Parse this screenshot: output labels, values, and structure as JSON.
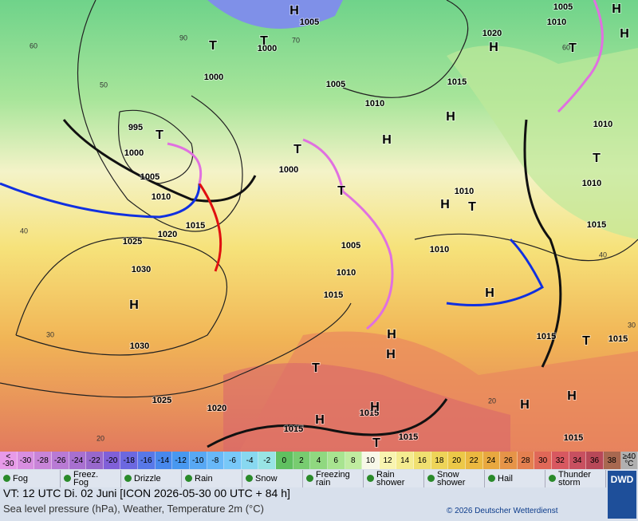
{
  "map": {
    "labels": [
      "1005",
      "1010",
      "1005",
      "1020",
      "1000",
      "1000",
      "1005",
      "1015",
      "1010",
      "995",
      "1000",
      "1000",
      "1005",
      "1010",
      "1015",
      "1020",
      "1025",
      "1030",
      "1010",
      "1010",
      "1010",
      "1015",
      "1005",
      "1010",
      "1010",
      "1015",
      "1015",
      "1015",
      "1030",
      "1025",
      "1020",
      "1015",
      "1015",
      "1015",
      "1015",
      "H",
      "H",
      "T",
      "T",
      "H",
      "H",
      "T",
      "T",
      "T",
      "H",
      "H",
      "T",
      "T",
      "H",
      "T",
      "H",
      "H",
      "H",
      "T",
      "T",
      "H",
      "H",
      "H",
      "H",
      "H",
      "T",
      "60",
      "50",
      "40",
      "30",
      "20",
      "70",
      "60",
      "40",
      "30",
      "20",
      "90"
    ]
  },
  "temperature_scale": {
    "labels": [
      "<\n-30",
      "-30",
      "-28",
      "-26",
      "-24",
      "-22",
      "-20",
      "-18",
      "-16",
      "-14",
      "-12",
      "-10",
      "-8",
      "-6",
      "-4",
      "-2",
      "0",
      "2",
      "4",
      "6",
      "8",
      "10",
      "12",
      "14",
      "16",
      "18",
      "20",
      "22",
      "24",
      "26",
      "28",
      "30",
      "32",
      "34",
      "36",
      "38",
      "≥40\n°C"
    ]
  },
  "weather_legend": [
    "Fog",
    "Freez.\nFog",
    "Drizzle",
    "Rain",
    "Snow",
    "Freezing\nrain",
    "Rain\nshower",
    "Snow\nshower",
    "Hail",
    "Thunder\nstorm"
  ],
  "footer": {
    "valid_time": "VT: 12 UTC Di.  02 Juni [ICON 2026-05-30  00 UTC + 84 h]",
    "description": "Sea level pressure (hPa), Weather, Temperature 2m (°C)",
    "copyright": "© 2026 Deutscher Wetterdienst",
    "logo": "DWD"
  }
}
